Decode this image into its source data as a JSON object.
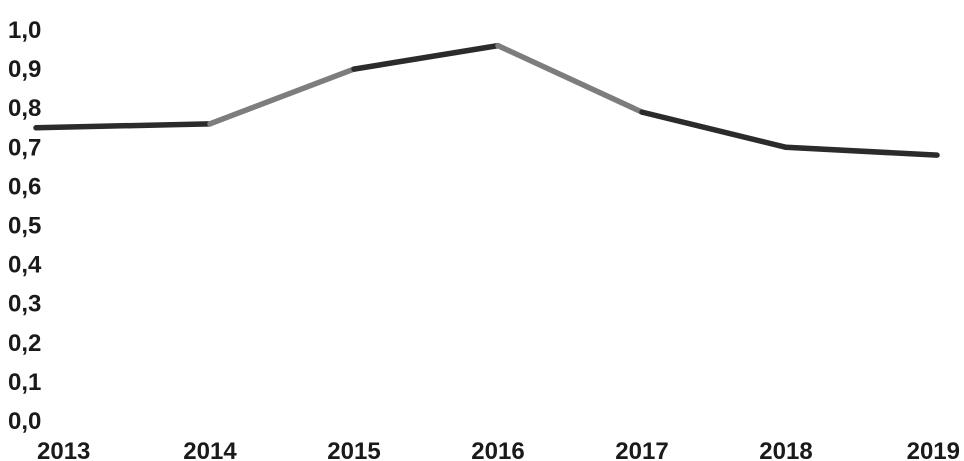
{
  "chart_data": {
    "type": "line",
    "categories": [
      "2013",
      "2014",
      "2015",
      "2016",
      "2017",
      "2018",
      "2019"
    ],
    "series": [
      {
        "values": [
          0.75,
          0.76,
          0.9,
          0.96,
          0.79,
          0.7,
          0.68
        ],
        "colors": [
          "#2b2b2b",
          "#7d7d7d",
          "#2b2b2b",
          "#7d7d7d",
          "#2b2b2b",
          "#2b2b2b"
        ]
      }
    ],
    "yticks": [
      "0,0",
      "0,1",
      "0,2",
      "0,3",
      "0,4",
      "0,5",
      "0,6",
      "0,7",
      "0,8",
      "0,9",
      "1,0"
    ],
    "ylim": [
      0,
      1.0
    ],
    "grid": false,
    "legend": "none"
  }
}
